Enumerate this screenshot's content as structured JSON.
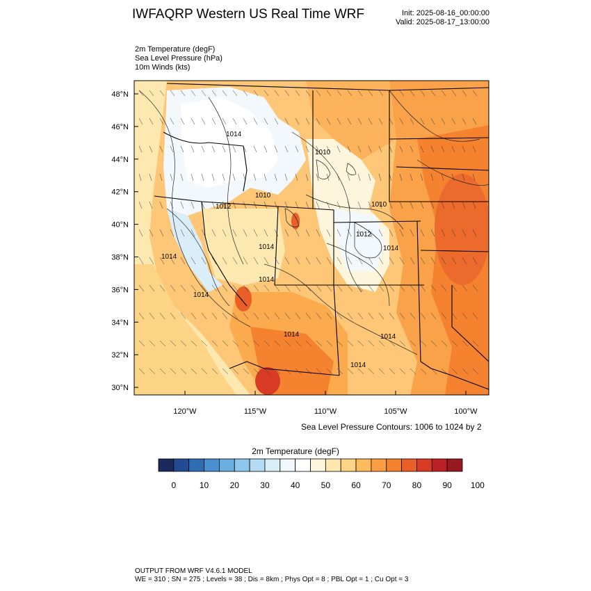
{
  "header": {
    "title": "IWFAQRP Western US Real Time WRF",
    "init": "Init: 2025-08-16_00:00:00",
    "valid": "Valid: 2025-08-17_13:00:00"
  },
  "fields": [
    "2m Temperature   (degF)",
    "Sea Level Pressure   (hPa)",
    "10m Winds   (kts)"
  ],
  "map": {
    "lat_labels": [
      "48°N",
      "46°N",
      "44°N",
      "42°N",
      "40°N",
      "38°N",
      "36°N",
      "34°N",
      "32°N",
      "30°N"
    ],
    "lon_labels": [
      "120°W",
      "115°W",
      "110°W",
      "105°W",
      "100°W"
    ],
    "contour_labels": [
      "1014",
      "1010",
      "1010",
      "1010",
      "1012",
      "1014",
      "1012",
      "1014",
      "1014",
      "1014",
      "1014",
      "1014",
      "1014",
      "1014"
    ]
  },
  "contour_note": "Sea Level Pressure Contours: 1006 to 1024 by 2",
  "colorbar": {
    "title": "2m Temperature  (degF)",
    "colors": [
      "#1b2a5e",
      "#234b91",
      "#2f6db4",
      "#4a8fd0",
      "#6aaee0",
      "#8ec6ec",
      "#b5dcf4",
      "#daeefa",
      "#f2f8fc",
      "#ffffff",
      "#fdf5dc",
      "#fde9b0",
      "#fdd386",
      "#fdbb5e",
      "#fba042",
      "#f5822f",
      "#ea5e28",
      "#d83b24",
      "#bc2024",
      "#961a1f"
    ],
    "tick_labels": [
      "0",
      "10",
      "20",
      "30",
      "40",
      "50",
      "60",
      "70",
      "80",
      "90",
      "100"
    ]
  },
  "footer": {
    "line1": "OUTPUT FROM WRF V4.6.1 MODEL",
    "line2": "WE = 310 ; SN = 275 ; Levels = 38 ; Dis = 8km ; Phys Opt = 8 ; PBL Opt = 1 ; Cu Opt = 3"
  }
}
